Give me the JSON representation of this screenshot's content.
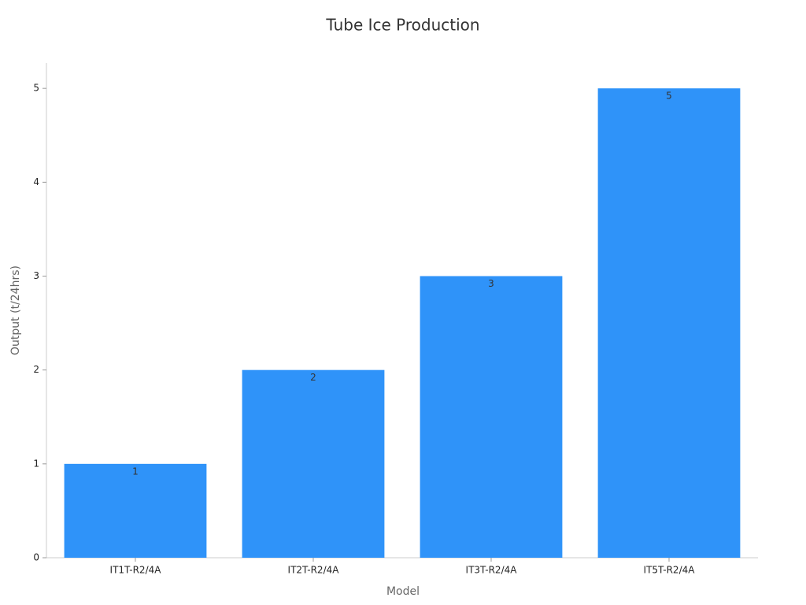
{
  "chart_data": {
    "type": "bar",
    "title": "Tube Ice Production",
    "x_label": "Model",
    "y_label": "Output (t/24hrs)",
    "categories": [
      "IT1T-R2/4A",
      "IT2T-R2/4A",
      "IT3T-R2/4A",
      "IT5T-R2/4A"
    ],
    "values": [
      1,
      2,
      3,
      5
    ],
    "color": "#2f93f9",
    "ylim": [
      0,
      5.27
    ],
    "yticks": [
      0,
      1,
      2,
      3,
      4,
      5
    ],
    "grid": false,
    "data_labels": true
  }
}
